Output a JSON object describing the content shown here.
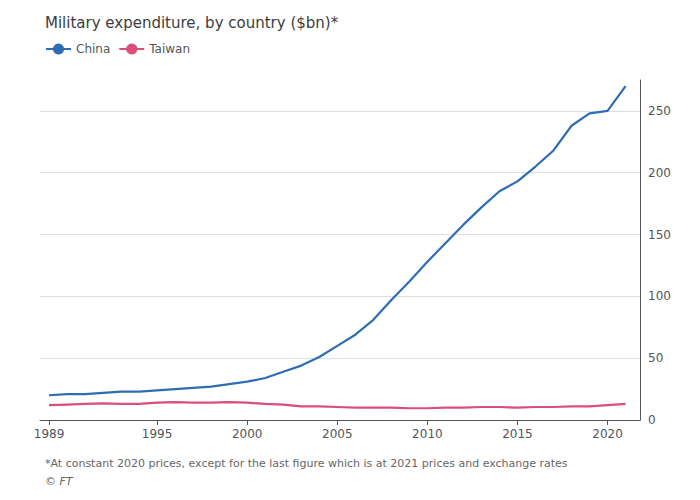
{
  "chart_data": {
    "type": "line",
    "title": "Military expenditure, by country ($bn)*",
    "footnote": "*At constant 2020 prices, except for the last figure which is at 2021 prices and exchange rates",
    "source": "© FT",
    "x": [
      1989,
      1990,
      1991,
      1992,
      1993,
      1994,
      1995,
      1996,
      1997,
      1998,
      1999,
      2000,
      2001,
      2002,
      2003,
      2004,
      2005,
      2006,
      2007,
      2008,
      2009,
      2010,
      2011,
      2012,
      2013,
      2014,
      2015,
      2016,
      2017,
      2018,
      2019,
      2020,
      2021
    ],
    "series": [
      {
        "name": "China",
        "color": "#2e6db4",
        "values": [
          20,
          21,
          21,
          22,
          23,
          23,
          24,
          25,
          26,
          27,
          29,
          31,
          34,
          39,
          44,
          51,
          60,
          69,
          81,
          97,
          112,
          128,
          143,
          158,
          172,
          185,
          193,
          205,
          218,
          238,
          248,
          250,
          270
        ]
      },
      {
        "name": "Taiwan",
        "color": "#d94f7a",
        "values": [
          12,
          12.5,
          13,
          13.5,
          13,
          13,
          14,
          14.5,
          14,
          14,
          14.5,
          14,
          13,
          12.5,
          11,
          11,
          10.5,
          10,
          10,
          10,
          9.5,
          9.5,
          10,
          10,
          10.5,
          10.5,
          10,
          10.5,
          10.5,
          11,
          11,
          12,
          13
        ]
      }
    ],
    "xlim": [
      1988.5,
      2021.8
    ],
    "xticks": [
      1989,
      1995,
      2000,
      2005,
      2010,
      2015,
      2020
    ],
    "ylim": [
      0,
      275
    ],
    "yticks": [
      0,
      50,
      100,
      150,
      200,
      250
    ],
    "grid": true,
    "legend": "upper left"
  }
}
